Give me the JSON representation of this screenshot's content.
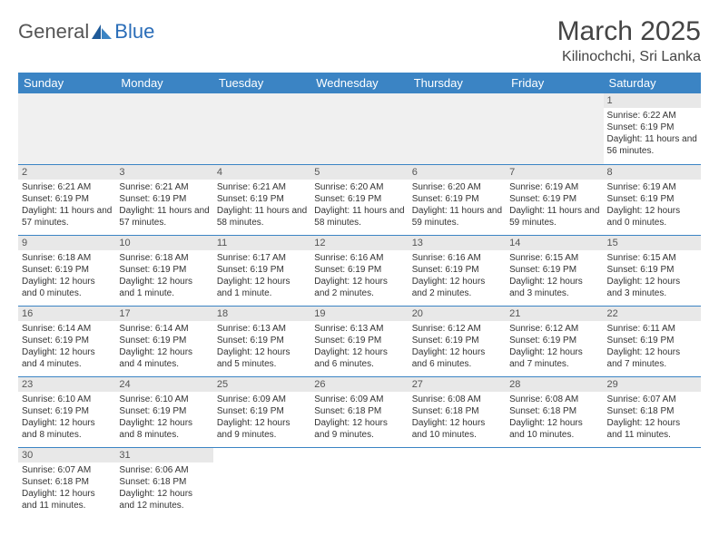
{
  "logo": {
    "text1": "General",
    "text2": "Blue"
  },
  "title": "March 2025",
  "location": "Kilinochchi, Sri Lanka",
  "colors": {
    "header_bg": "#3b84c4",
    "header_fg": "#ffffff",
    "daynum_bg": "#e8e8e8",
    "border": "#3b84c4",
    "logo_gray": "#555555",
    "logo_blue": "#2a6db8"
  },
  "daysOfWeek": [
    "Sunday",
    "Monday",
    "Tuesday",
    "Wednesday",
    "Thursday",
    "Friday",
    "Saturday"
  ],
  "weeks": [
    [
      null,
      null,
      null,
      null,
      null,
      null,
      {
        "n": "1",
        "sr": "Sunrise: 6:22 AM",
        "ss": "Sunset: 6:19 PM",
        "dl": "Daylight: 11 hours and 56 minutes."
      }
    ],
    [
      {
        "n": "2",
        "sr": "Sunrise: 6:21 AM",
        "ss": "Sunset: 6:19 PM",
        "dl": "Daylight: 11 hours and 57 minutes."
      },
      {
        "n": "3",
        "sr": "Sunrise: 6:21 AM",
        "ss": "Sunset: 6:19 PM",
        "dl": "Daylight: 11 hours and 57 minutes."
      },
      {
        "n": "4",
        "sr": "Sunrise: 6:21 AM",
        "ss": "Sunset: 6:19 PM",
        "dl": "Daylight: 11 hours and 58 minutes."
      },
      {
        "n": "5",
        "sr": "Sunrise: 6:20 AM",
        "ss": "Sunset: 6:19 PM",
        "dl": "Daylight: 11 hours and 58 minutes."
      },
      {
        "n": "6",
        "sr": "Sunrise: 6:20 AM",
        "ss": "Sunset: 6:19 PM",
        "dl": "Daylight: 11 hours and 59 minutes."
      },
      {
        "n": "7",
        "sr": "Sunrise: 6:19 AM",
        "ss": "Sunset: 6:19 PM",
        "dl": "Daylight: 11 hours and 59 minutes."
      },
      {
        "n": "8",
        "sr": "Sunrise: 6:19 AM",
        "ss": "Sunset: 6:19 PM",
        "dl": "Daylight: 12 hours and 0 minutes."
      }
    ],
    [
      {
        "n": "9",
        "sr": "Sunrise: 6:18 AM",
        "ss": "Sunset: 6:19 PM",
        "dl": "Daylight: 12 hours and 0 minutes."
      },
      {
        "n": "10",
        "sr": "Sunrise: 6:18 AM",
        "ss": "Sunset: 6:19 PM",
        "dl": "Daylight: 12 hours and 1 minute."
      },
      {
        "n": "11",
        "sr": "Sunrise: 6:17 AM",
        "ss": "Sunset: 6:19 PM",
        "dl": "Daylight: 12 hours and 1 minute."
      },
      {
        "n": "12",
        "sr": "Sunrise: 6:16 AM",
        "ss": "Sunset: 6:19 PM",
        "dl": "Daylight: 12 hours and 2 minutes."
      },
      {
        "n": "13",
        "sr": "Sunrise: 6:16 AM",
        "ss": "Sunset: 6:19 PM",
        "dl": "Daylight: 12 hours and 2 minutes."
      },
      {
        "n": "14",
        "sr": "Sunrise: 6:15 AM",
        "ss": "Sunset: 6:19 PM",
        "dl": "Daylight: 12 hours and 3 minutes."
      },
      {
        "n": "15",
        "sr": "Sunrise: 6:15 AM",
        "ss": "Sunset: 6:19 PM",
        "dl": "Daylight: 12 hours and 3 minutes."
      }
    ],
    [
      {
        "n": "16",
        "sr": "Sunrise: 6:14 AM",
        "ss": "Sunset: 6:19 PM",
        "dl": "Daylight: 12 hours and 4 minutes."
      },
      {
        "n": "17",
        "sr": "Sunrise: 6:14 AM",
        "ss": "Sunset: 6:19 PM",
        "dl": "Daylight: 12 hours and 4 minutes."
      },
      {
        "n": "18",
        "sr": "Sunrise: 6:13 AM",
        "ss": "Sunset: 6:19 PM",
        "dl": "Daylight: 12 hours and 5 minutes."
      },
      {
        "n": "19",
        "sr": "Sunrise: 6:13 AM",
        "ss": "Sunset: 6:19 PM",
        "dl": "Daylight: 12 hours and 6 minutes."
      },
      {
        "n": "20",
        "sr": "Sunrise: 6:12 AM",
        "ss": "Sunset: 6:19 PM",
        "dl": "Daylight: 12 hours and 6 minutes."
      },
      {
        "n": "21",
        "sr": "Sunrise: 6:12 AM",
        "ss": "Sunset: 6:19 PM",
        "dl": "Daylight: 12 hours and 7 minutes."
      },
      {
        "n": "22",
        "sr": "Sunrise: 6:11 AM",
        "ss": "Sunset: 6:19 PM",
        "dl": "Daylight: 12 hours and 7 minutes."
      }
    ],
    [
      {
        "n": "23",
        "sr": "Sunrise: 6:10 AM",
        "ss": "Sunset: 6:19 PM",
        "dl": "Daylight: 12 hours and 8 minutes."
      },
      {
        "n": "24",
        "sr": "Sunrise: 6:10 AM",
        "ss": "Sunset: 6:19 PM",
        "dl": "Daylight: 12 hours and 8 minutes."
      },
      {
        "n": "25",
        "sr": "Sunrise: 6:09 AM",
        "ss": "Sunset: 6:19 PM",
        "dl": "Daylight: 12 hours and 9 minutes."
      },
      {
        "n": "26",
        "sr": "Sunrise: 6:09 AM",
        "ss": "Sunset: 6:18 PM",
        "dl": "Daylight: 12 hours and 9 minutes."
      },
      {
        "n": "27",
        "sr": "Sunrise: 6:08 AM",
        "ss": "Sunset: 6:18 PM",
        "dl": "Daylight: 12 hours and 10 minutes."
      },
      {
        "n": "28",
        "sr": "Sunrise: 6:08 AM",
        "ss": "Sunset: 6:18 PM",
        "dl": "Daylight: 12 hours and 10 minutes."
      },
      {
        "n": "29",
        "sr": "Sunrise: 6:07 AM",
        "ss": "Sunset: 6:18 PM",
        "dl": "Daylight: 12 hours and 11 minutes."
      }
    ],
    [
      {
        "n": "30",
        "sr": "Sunrise: 6:07 AM",
        "ss": "Sunset: 6:18 PM",
        "dl": "Daylight: 12 hours and 11 minutes."
      },
      {
        "n": "31",
        "sr": "Sunrise: 6:06 AM",
        "ss": "Sunset: 6:18 PM",
        "dl": "Daylight: 12 hours and 12 minutes."
      },
      null,
      null,
      null,
      null,
      null
    ]
  ]
}
